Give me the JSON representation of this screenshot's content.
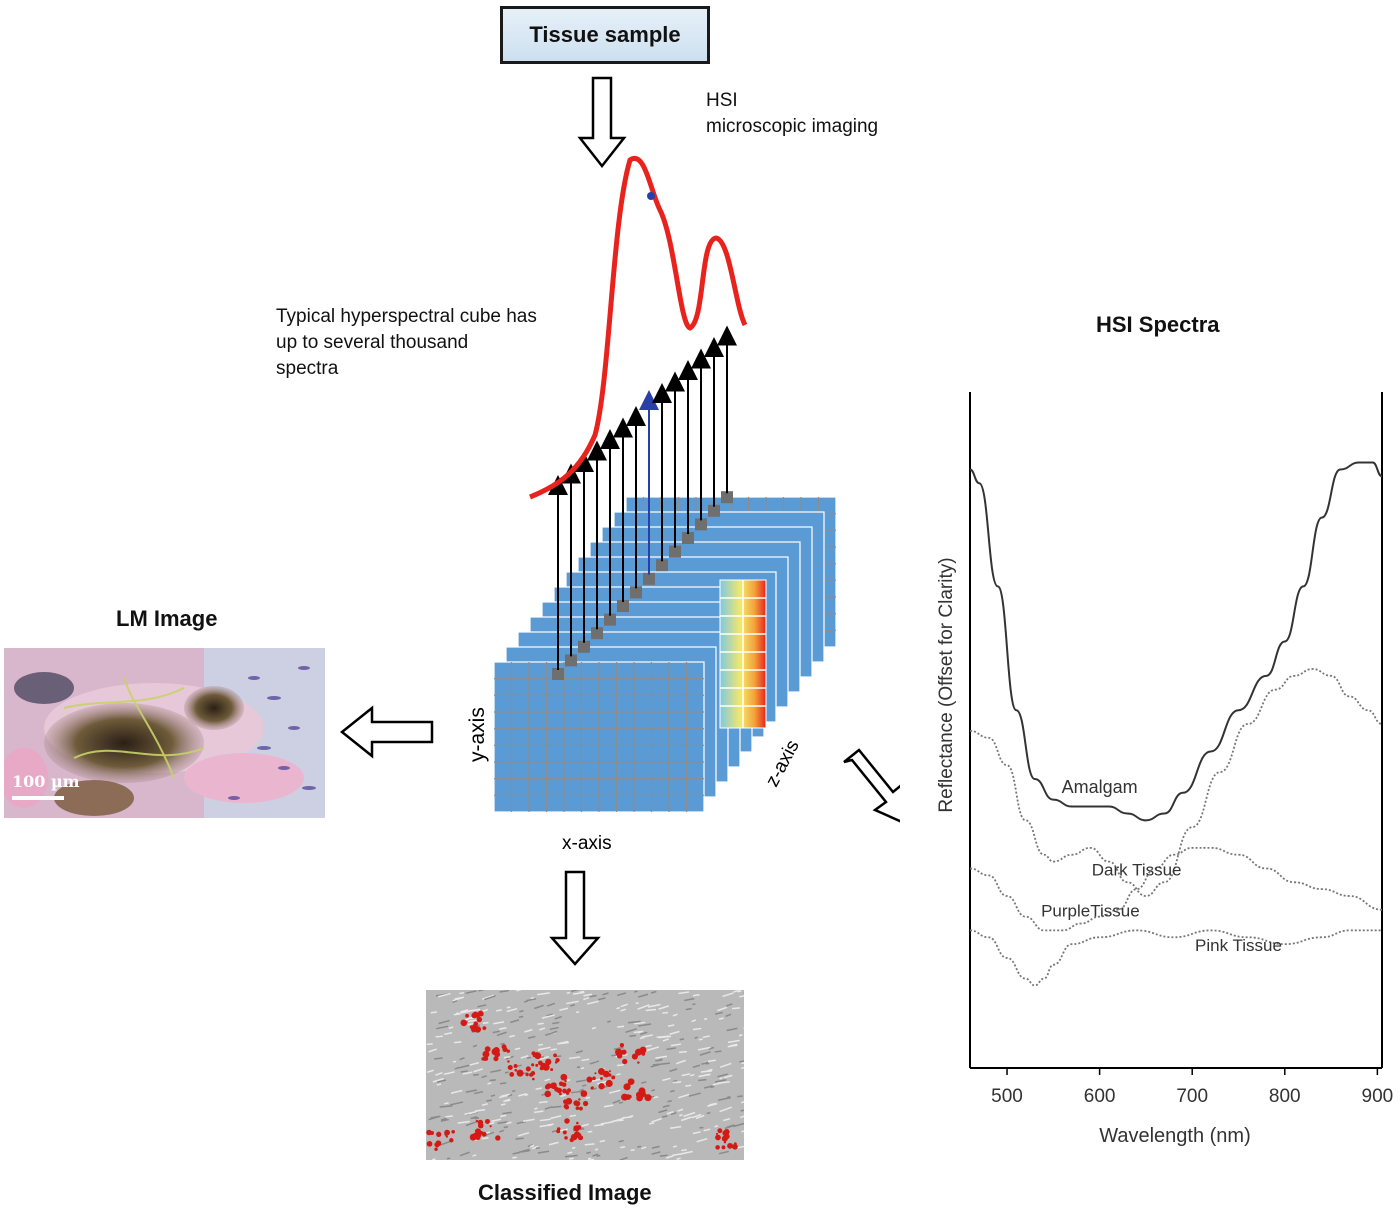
{
  "sample_label": "Tissue sample",
  "hsi_caption": [
    "HSI",
    "microscopic imaging"
  ],
  "cube_caption": [
    "Typical hyperspectral cube has",
    "up to several thousand",
    "spectra"
  ],
  "axes": {
    "x": "x-axis",
    "y": "y-axis",
    "z": "z-axis"
  },
  "lm": {
    "title": "LM  Image",
    "scale": "100 µm"
  },
  "classified_title": "Classified Image",
  "colors": {
    "spectrum": "#e8231e",
    "cube_face": "#5b9bd5",
    "cube_grid": "#8c8c8c",
    "box_fill": "#dce9f5"
  },
  "chart_data": {
    "type": "line",
    "title": "HSI Spectra",
    "xlabel": "Wavelength (nm)",
    "ylabel": "Reflectance (Offset for Clarity)",
    "xlim": [
      460,
      905
    ],
    "xticks": [
      500,
      600,
      700,
      800,
      900
    ],
    "grid": false,
    "series": [
      {
        "name": "Amalgam",
        "style": "solid",
        "x": [
          460,
          470,
          490,
          510,
          530,
          550,
          570,
          590,
          610,
          630,
          650,
          670,
          690,
          720,
          750,
          780,
          800,
          820,
          840,
          860,
          880,
          895,
          905
        ],
        "y": [
          0.87,
          0.85,
          0.7,
          0.52,
          0.42,
          0.39,
          0.38,
          0.38,
          0.38,
          0.37,
          0.36,
          0.37,
          0.4,
          0.46,
          0.52,
          0.57,
          0.62,
          0.7,
          0.8,
          0.87,
          0.88,
          0.88,
          0.86
        ]
      },
      {
        "name": "Dark Tissue",
        "style": "dotted",
        "x": [
          460,
          480,
          500,
          520,
          540,
          550,
          570,
          590,
          610,
          630,
          650,
          670,
          700,
          730,
          760,
          790,
          810,
          830,
          850,
          870,
          890,
          905
        ],
        "y": [
          0.49,
          0.48,
          0.44,
          0.36,
          0.31,
          0.3,
          0.31,
          0.32,
          0.3,
          0.27,
          0.25,
          0.27,
          0.35,
          0.43,
          0.5,
          0.55,
          0.57,
          0.58,
          0.57,
          0.54,
          0.52,
          0.5
        ]
      },
      {
        "name": "PurpleTissue",
        "style": "dotted",
        "x": [
          460,
          480,
          500,
          520,
          540,
          560,
          580,
          600,
          620,
          640,
          660,
          680,
          700,
          720,
          750,
          780,
          810,
          840,
          870,
          905
        ],
        "y": [
          0.29,
          0.28,
          0.25,
          0.22,
          0.2,
          0.2,
          0.21,
          0.22,
          0.23,
          0.26,
          0.29,
          0.31,
          0.32,
          0.32,
          0.31,
          0.29,
          0.27,
          0.26,
          0.25,
          0.23
        ]
      },
      {
        "name": "Pink Tissue",
        "style": "dotted",
        "x": [
          460,
          480,
          500,
          520,
          530,
          540,
          550,
          570,
          600,
          640,
          680,
          720,
          760,
          800,
          840,
          870,
          905
        ],
        "y": [
          0.2,
          0.19,
          0.16,
          0.13,
          0.12,
          0.13,
          0.15,
          0.18,
          0.19,
          0.2,
          0.19,
          0.2,
          0.19,
          0.18,
          0.19,
          0.2,
          0.2
        ]
      }
    ]
  }
}
